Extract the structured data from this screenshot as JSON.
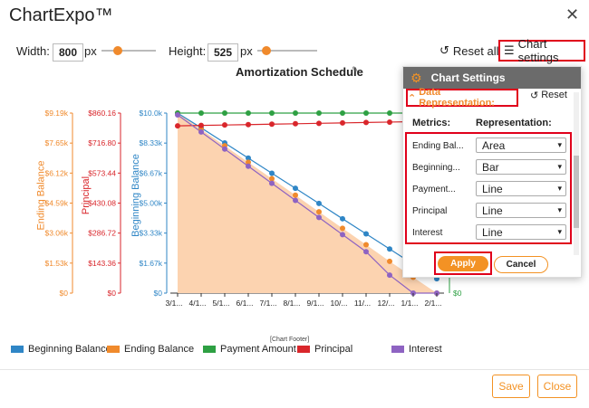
{
  "app": {
    "title": "ChartExpo™"
  },
  "controls": {
    "width_label": "Width:",
    "width_value": "800",
    "width_unit": "px",
    "width_slider_fraction": 0.3,
    "height_label": "Height:",
    "height_value": "525",
    "height_unit": "px",
    "height_slider_fraction": 0.15,
    "reset_all": "Reset all",
    "chart_settings": "Chart settings"
  },
  "chart": {
    "title": "Amortization Schedule",
    "footer": "[Chart Footer]",
    "axes": {
      "ending_balance": {
        "title": "Ending Balance",
        "color": "#f08a2c",
        "ticks": [
          "$9.19k",
          "$7.65k",
          "$6.12k",
          "$4.59k",
          "$3.06k",
          "$1.53k",
          "$0"
        ]
      },
      "principal": {
        "title": "Principal",
        "color": "#d9262b",
        "ticks": [
          "$860.16",
          "$716.80",
          "$573.44",
          "$430.08",
          "$286.72",
          "$143.36",
          "$0"
        ]
      },
      "beginning_balance": {
        "title": "Beginning Balance",
        "color": "#2f86c6",
        "ticks": [
          "$10.0k",
          "$8.33k",
          "$6.67k",
          "$5.00k",
          "$3.33k",
          "$1.67k",
          "$0"
        ]
      },
      "right_payment": {
        "tick": "$0",
        "color": "#2ea043"
      },
      "right_interest": {
        "tick": "$0",
        "color": "#8e63c2"
      }
    },
    "x_ticks": [
      "3/1...",
      "4/1...",
      "5/1...",
      "6/1...",
      "7/1...",
      "8/1...",
      "9/1...",
      "10/...",
      "11/...",
      "12/...",
      "1/1...",
      "2/1..."
    ]
  },
  "chart_data": {
    "type": "line",
    "title": "Amortization Schedule",
    "categories": [
      "3/1...",
      "4/1...",
      "5/1...",
      "6/1...",
      "7/1...",
      "8/1...",
      "9/1...",
      "10/...",
      "11/...",
      "12/...",
      "1/1...",
      "2/1..."
    ],
    "series": [
      {
        "name": "Beginning Balance",
        "representation": "Bar",
        "color": "#2f86c6",
        "values": [
          10000,
          9180,
          8340,
          7500,
          6660,
          5820,
          4980,
          4130,
          3290,
          2450,
          1610,
          800
        ]
      },
      {
        "name": "Ending Balance",
        "representation": "Area",
        "color": "#f08a2c",
        "values": [
          9190,
          8360,
          7520,
          6680,
          5840,
          5000,
          4150,
          3310,
          2470,
          1620,
          810,
          0
        ]
      },
      {
        "name": "Payment Amount",
        "representation": "Line",
        "color": "#2ea043",
        "values": [
          10000,
          10000,
          10000,
          10000,
          10000,
          10000,
          10000,
          10000,
          10000,
          10000,
          10000,
          10000
        ]
      },
      {
        "name": "Principal",
        "representation": "Line",
        "color": "#d9262b",
        "values": [
          800,
          802,
          804,
          806,
          808,
          810,
          812,
          814,
          816,
          818,
          820,
          822
        ]
      },
      {
        "name": "Interest",
        "representation": "Line",
        "color": "#8e63c2",
        "values": [
          9900,
          8950,
          8000,
          7050,
          6100,
          5150,
          4200,
          3250,
          2300,
          1000,
          0,
          0
        ]
      }
    ]
  },
  "legend": [
    {
      "label": "Beginning Balance",
      "color": "#2f86c6"
    },
    {
      "label": "Ending Balance",
      "color": "#f08a2c"
    },
    {
      "label": "Payment Amount",
      "color": "#2ea043"
    },
    {
      "label": "Principal",
      "color": "#d9262b"
    },
    {
      "label": "Interest",
      "color": "#8e63c2"
    }
  ],
  "panel": {
    "header": "Chart Settings",
    "section": "Data Representation:",
    "reset": "Reset",
    "metrics_header": "Metrics:",
    "representation_header": "Representation:",
    "rows": [
      {
        "metric": "Ending Bal...",
        "value": "Area"
      },
      {
        "metric": "Beginning...",
        "value": "Bar"
      },
      {
        "metric": "Payment...",
        "value": "Line"
      },
      {
        "metric": "Principal",
        "value": "Line"
      },
      {
        "metric": "Interest",
        "value": "Line"
      }
    ],
    "apply": "Apply",
    "cancel": "Cancel"
  },
  "footer": {
    "save": "Save",
    "close": "Close"
  }
}
